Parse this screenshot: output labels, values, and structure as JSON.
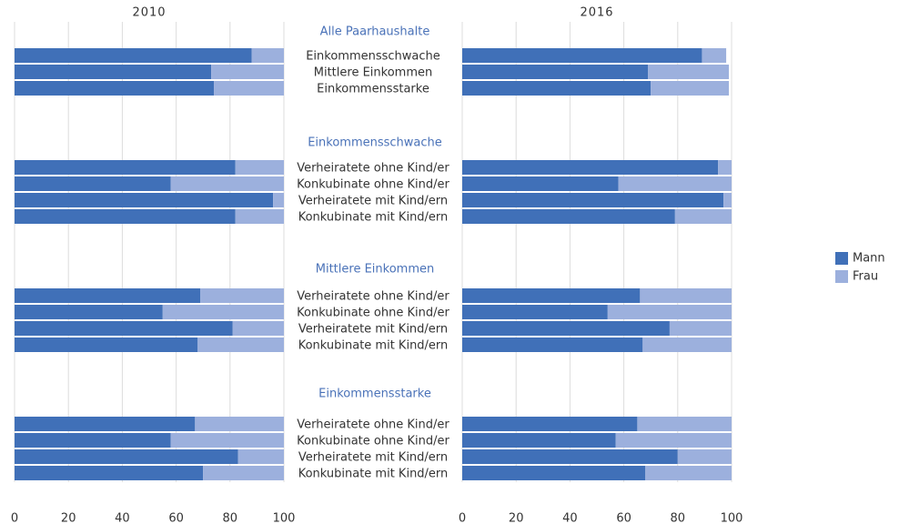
{
  "chart_data": {
    "type": "stacked-barh",
    "panels": [
      "2010",
      "2016"
    ],
    "series": [
      {
        "name": "Mann",
        "color": "#4070b8"
      },
      {
        "name": "Frau",
        "color": "#9cb0dd"
      }
    ],
    "xlim": [
      0,
      100
    ],
    "xticks": [
      0,
      20,
      40,
      60,
      80,
      100
    ],
    "grid": true,
    "legend": "right",
    "groups": [
      {
        "title": "Alle Paarhaushalte",
        "categories": [
          "Einkommensschwache",
          "Mittlere Einkommen",
          "Einkommensstarke"
        ],
        "values": [
          [
            [
              88,
              73,
              74
            ],
            [
              12,
              27,
              26
            ]
          ],
          [
            [
              89,
              69,
              70
            ],
            [
              9,
              30,
              29
            ]
          ]
        ]
      },
      {
        "title": "Einkommensschwache",
        "categories": [
          "Verheiratete ohne Kind/er",
          "Konkubinate ohne Kind/er",
          "Verheiratete mit Kind/ern",
          "Konkubinate mit Kind/ern"
        ],
        "values": [
          [
            [
              82,
              58,
              96,
              82
            ],
            [
              18,
              42,
              4,
              18
            ]
          ],
          [
            [
              95,
              58,
              97,
              79
            ],
            [
              5,
              42,
              3,
              21
            ]
          ]
        ]
      },
      {
        "title": "Mittlere Einkommen",
        "categories": [
          "Verheiratete ohne Kind/er",
          "Konkubinate ohne Kind/er",
          "Verheiratete mit Kind/ern",
          "Konkubinate mit Kind/ern"
        ],
        "values": [
          [
            [
              69,
              55,
              81,
              68
            ],
            [
              31,
              45,
              19,
              32
            ]
          ],
          [
            [
              66,
              54,
              77,
              67
            ],
            [
              34,
              46,
              23,
              33
            ]
          ]
        ]
      },
      {
        "title": "Einkommensstarke",
        "categories": [
          "Verheiratete ohne Kind/er",
          "Konkubinate ohne Kind/er",
          "Verheiratete mit Kind/ern",
          "Konkubinate mit Kind/ern"
        ],
        "values": [
          [
            [
              67,
              58,
              83,
              70
            ],
            [
              33,
              42,
              17,
              30
            ]
          ],
          [
            [
              65,
              57,
              80,
              68
            ],
            [
              35,
              43,
              20,
              32
            ]
          ]
        ]
      }
    ]
  }
}
